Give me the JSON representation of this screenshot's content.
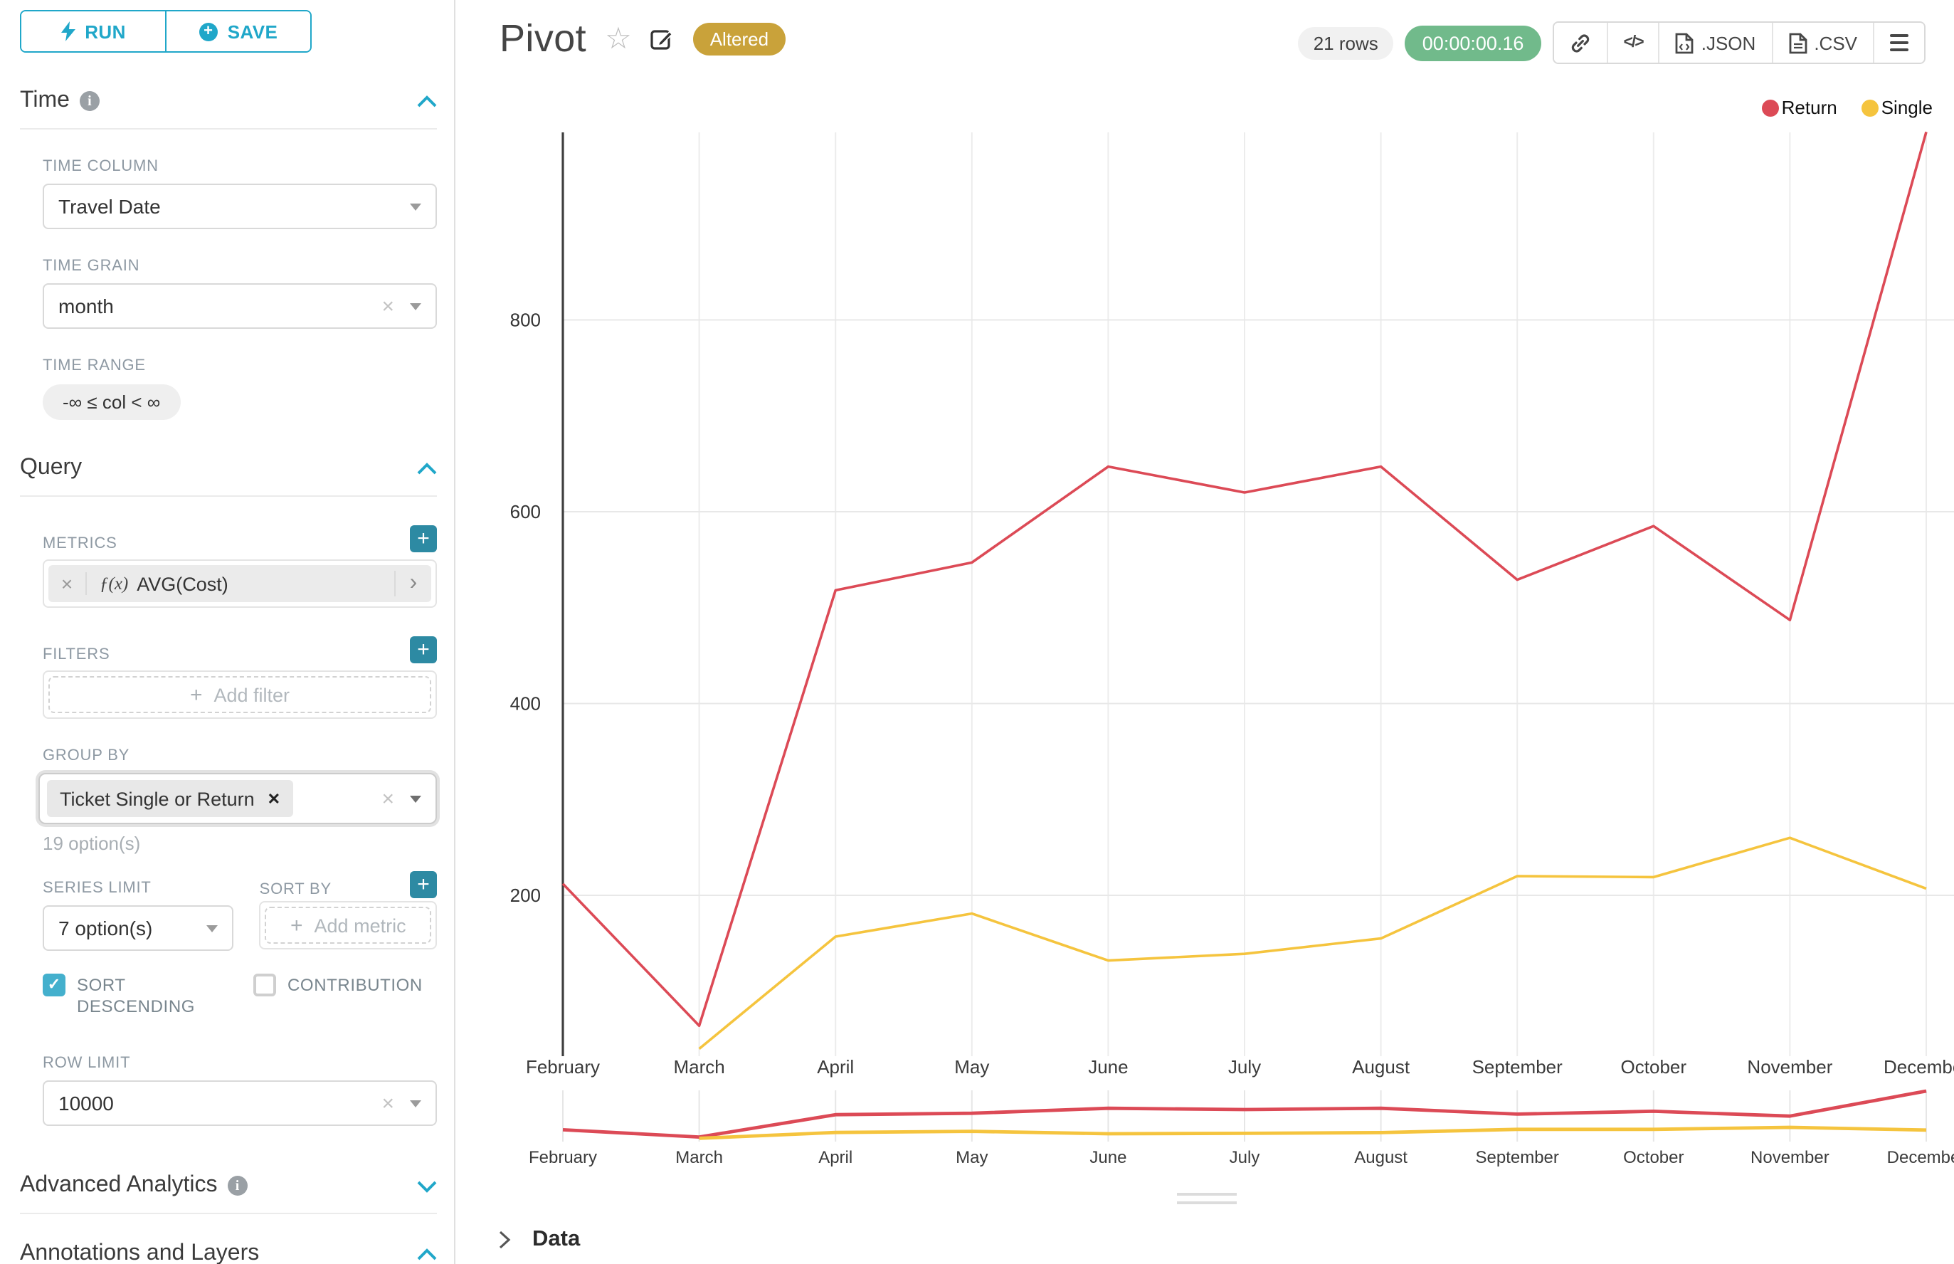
{
  "app": {
    "accent_color": "#20a7c9"
  },
  "sidebar": {
    "run_button": "RUN",
    "save_button": "SAVE",
    "time_section": {
      "title": "Time"
    },
    "time_column": {
      "label": "TIME COLUMN",
      "value": "Travel Date"
    },
    "time_grain": {
      "label": "TIME GRAIN",
      "value": "month"
    },
    "time_range": {
      "label": "TIME RANGE",
      "value": "-∞ ≤ col < ∞"
    },
    "query_section": {
      "title": "Query"
    },
    "metrics": {
      "label": "METRICS",
      "fx": "ƒ(x)",
      "value": "AVG(Cost)"
    },
    "filters": {
      "label": "FILTERS",
      "placeholder": "Add filter"
    },
    "group_by": {
      "label": "GROUP BY",
      "chip": "Ticket Single or Return",
      "hint": "19 option(s)"
    },
    "series_limit": {
      "label": "SERIES LIMIT",
      "value": "7 option(s)"
    },
    "sort_by": {
      "label": "SORT BY",
      "placeholder": "Add metric"
    },
    "sort_descending": {
      "label": "SORT DESCENDING",
      "checked": true
    },
    "contribution": {
      "label": "CONTRIBUTION",
      "checked": false
    },
    "row_limit": {
      "label": "ROW LIMIT",
      "value": "10000"
    },
    "advanced_section": {
      "title": "Advanced Analytics"
    },
    "annotations_section": {
      "title": "Annotations and Layers"
    }
  },
  "header": {
    "title": "Pivot",
    "altered_badge": {
      "label": "Altered",
      "color": "#c9a23a"
    },
    "rows_badge": "21 rows",
    "timer_badge": {
      "label": "00:00:00.16",
      "color": "#71ba8b"
    },
    "toolbar": {
      "json_label": ".JSON",
      "csv_label": ".CSV"
    }
  },
  "chart_data": {
    "type": "line",
    "title": "Pivot",
    "x": [
      "February",
      "March",
      "April",
      "May",
      "June",
      "July",
      "August",
      "September",
      "October",
      "November",
      "December"
    ],
    "series": [
      {
        "name": "Return",
        "color": "#dc4a56",
        "values": [
          212,
          64,
          518,
          547,
          647,
          620,
          647,
          529,
          585,
          487,
          996
        ]
      },
      {
        "name": "Single",
        "color": "#f5c43e",
        "values": [
          null,
          40,
          157,
          181,
          132,
          139,
          155,
          220,
          219,
          260,
          207
        ]
      }
    ],
    "yticks": [
      200,
      400,
      600,
      800
    ],
    "ylim": [
      30,
      1010
    ],
    "xlabel": "",
    "ylabel": "",
    "legend_position": "top-right",
    "grid": true,
    "has_brush_minimap": true
  },
  "data_panel": {
    "label": "Data"
  }
}
